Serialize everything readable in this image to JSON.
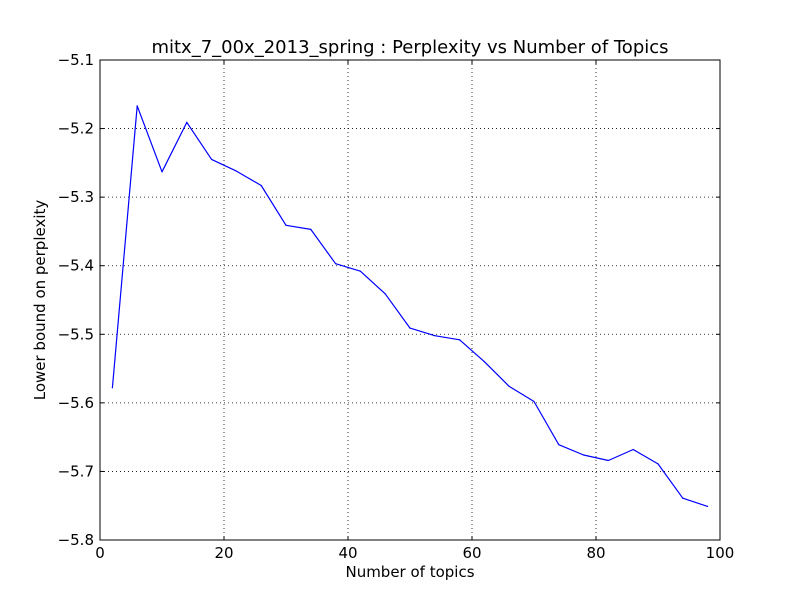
{
  "chart_data": {
    "type": "line",
    "title": "mitx_7_00x_2013_spring : Perplexity vs Number of Topics",
    "xlabel": "Number of topics",
    "ylabel": "Lower bound on perplexity",
    "xlim": [
      0,
      100
    ],
    "ylim": [
      -5.8,
      -5.1
    ],
    "xticks": [
      0,
      20,
      40,
      60,
      80,
      100
    ],
    "yticks": [
      -5.1,
      -5.2,
      -5.3,
      -5.4,
      -5.5,
      -5.6,
      -5.7,
      -5.8
    ],
    "xtick_labels": [
      "0",
      "20",
      "40",
      "60",
      "80",
      "100"
    ],
    "ytick_labels": [
      "−5.1",
      "−5.2",
      "−5.3",
      "−5.4",
      "−5.5",
      "−5.6",
      "−5.7",
      "−5.8"
    ],
    "grid": true,
    "series": [
      {
        "color": "#0000ff",
        "x": [
          2,
          6,
          10,
          14,
          18,
          22,
          26,
          30,
          34,
          38,
          42,
          46,
          50,
          54,
          58,
          62,
          66,
          70,
          74,
          78,
          82,
          86,
          90,
          94,
          98
        ],
        "y": [
          -5.578,
          -5.167,
          -5.263,
          -5.191,
          -5.245,
          -5.262,
          -5.283,
          -5.341,
          -5.347,
          -5.397,
          -5.408,
          -5.441,
          -5.491,
          -5.502,
          -5.508,
          -5.54,
          -5.576,
          -5.598,
          -5.661,
          -5.676,
          -5.684,
          -5.668,
          -5.689,
          -5.739,
          -5.751
        ]
      }
    ]
  }
}
